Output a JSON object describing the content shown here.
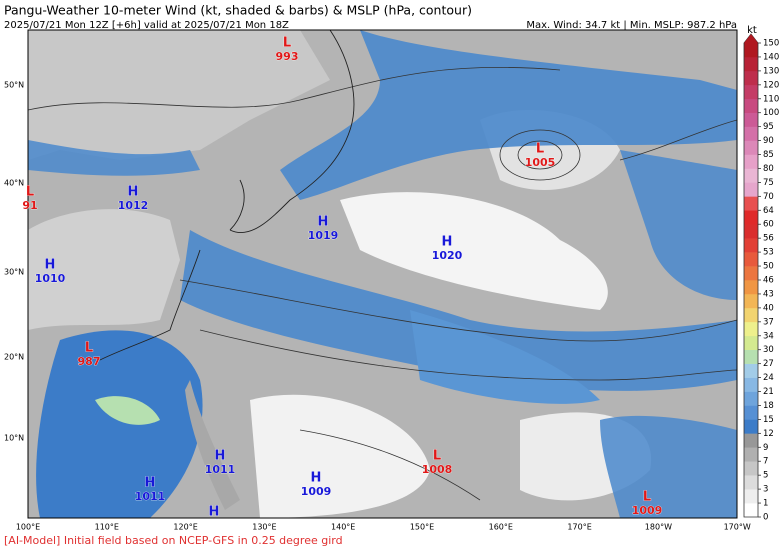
{
  "header": {
    "title": "Pangu-Weather 10-meter Wind (kt, shaded & barbs) & MSLP (hPa, contour)",
    "subtitle": "2025/07/21 Mon 12Z [+6h] valid at 2025/07/21 Mon 18Z",
    "stats": "Max. Wind: 34.7 kt | Min. MSLP: 987.2 hPa"
  },
  "map": {
    "lat_labels": [
      "50°N",
      "40°N",
      "30°N",
      "20°N",
      "10°N"
    ],
    "lon_labels": [
      "100°E",
      "110°E",
      "120°E",
      "130°E",
      "140°E",
      "150°E",
      "160°E",
      "170°E",
      "180°W",
      "170°W"
    ],
    "centers": [
      {
        "label": "L",
        "value": 993
      },
      {
        "label": "L",
        "value": 91
      },
      {
        "label": "H",
        "value": 1012
      },
      {
        "label": "H",
        "value": 1019
      },
      {
        "label": "H",
        "value": 1020
      },
      {
        "label": "L",
        "value": 1005
      },
      {
        "label": "H",
        "value": 1010
      },
      {
        "label": "L",
        "value": 987
      },
      {
        "label": "H",
        "value": 1011
      },
      {
        "label": "H",
        "value": 1011
      },
      {
        "label": "H",
        "value": 1009
      },
      {
        "label": "L",
        "value": 1008
      },
      {
        "label": "L",
        "value": 1009
      },
      {
        "label": "H"
      }
    ]
  },
  "colorbar": {
    "unit": "kt",
    "ticks": [
      0,
      1,
      3,
      5,
      7,
      9,
      12,
      15,
      18,
      21,
      24,
      27,
      30,
      34,
      37,
      40,
      43,
      46,
      50,
      53,
      56,
      60,
      64,
      70,
      75,
      80,
      85,
      90,
      95,
      100,
      110,
      120,
      130,
      140,
      150
    ],
    "colors": [
      "#ffffff",
      "#eeeeee",
      "#dcdcdc",
      "#c6c6c6",
      "#b0b0b0",
      "#989898",
      "#3c7cc8",
      "#5690d4",
      "#6ea4dc",
      "#88b8e4",
      "#a2cce8",
      "#b6e0b0",
      "#d4ea90",
      "#eef08c",
      "#f2d470",
      "#f2b656",
      "#f09644",
      "#ec7640",
      "#e85a3c",
      "#e24036",
      "#da2e2e",
      "#e02a2a",
      "#e85050",
      "#e6a6cc",
      "#eab6d4",
      "#e6a0c8",
      "#dc88b8",
      "#d470a8",
      "#cc5a96",
      "#c84a80",
      "#c43c66",
      "#be2e4c",
      "#b82236",
      "#b01820"
    ]
  },
  "footer": "[AI-Model] Initial field based on NCEP-GFS in 0.25 degree gird"
}
